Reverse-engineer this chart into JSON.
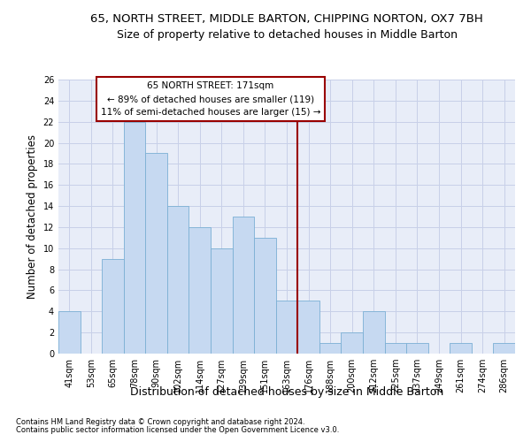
{
  "title": "65, NORTH STREET, MIDDLE BARTON, CHIPPING NORTON, OX7 7BH",
  "subtitle": "Size of property relative to detached houses in Middle Barton",
  "xlabel": "Distribution of detached houses by size in Middle Barton",
  "ylabel": "Number of detached properties",
  "categories": [
    "41sqm",
    "53sqm",
    "65sqm",
    "78sqm",
    "90sqm",
    "102sqm",
    "114sqm",
    "127sqm",
    "139sqm",
    "151sqm",
    "163sqm",
    "176sqm",
    "188sqm",
    "200sqm",
    "212sqm",
    "225sqm",
    "237sqm",
    "249sqm",
    "261sqm",
    "274sqm",
    "286sqm"
  ],
  "values": [
    4,
    0,
    9,
    22,
    19,
    14,
    12,
    10,
    13,
    11,
    5,
    5,
    1,
    2,
    4,
    1,
    1,
    0,
    1,
    0,
    1
  ],
  "bar_color": "#c6d9f1",
  "bar_edge_color": "#7bafd4",
  "vline_x_index": 11,
  "vline_color": "#990000",
  "annotation_text": "65 NORTH STREET: 171sqm\n← 89% of detached houses are smaller (119)\n11% of semi-detached houses are larger (15) →",
  "annotation_box_color": "white",
  "annotation_box_edge_color": "#990000",
  "ylim": [
    0,
    26
  ],
  "yticks": [
    0,
    2,
    4,
    6,
    8,
    10,
    12,
    14,
    16,
    18,
    20,
    22,
    24,
    26
  ],
  "grid_color": "#c8d0e8",
  "background_color": "#e8edf8",
  "footer_line1": "Contains HM Land Registry data © Crown copyright and database right 2024.",
  "footer_line2": "Contains public sector information licensed under the Open Government Licence v3.0.",
  "title_fontsize": 9.5,
  "subtitle_fontsize": 9,
  "tick_fontsize": 7,
  "ylabel_fontsize": 8.5,
  "xlabel_fontsize": 9,
  "annotation_fontsize": 7.5,
  "footer_fontsize": 6
}
